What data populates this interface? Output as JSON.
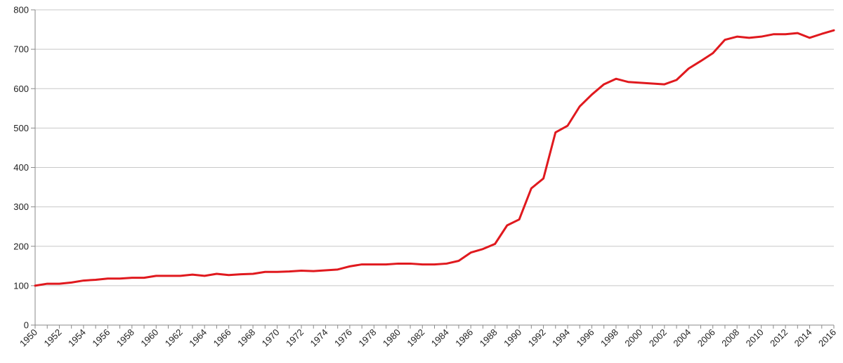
{
  "chart_data": {
    "type": "line",
    "title": "",
    "xlabel": "",
    "ylabel": "",
    "xlim": [
      1950,
      2016
    ],
    "ylim": [
      0,
      800
    ],
    "y_ticks": [
      0,
      100,
      200,
      300,
      400,
      500,
      600,
      700,
      800
    ],
    "x_tick_labels": [
      "1950",
      "1952",
      "1954",
      "1956",
      "1958",
      "1960",
      "1962",
      "1964",
      "1966",
      "1968",
      "1970",
      "1972",
      "1974",
      "1976",
      "1978",
      "1980",
      "1982",
      "1984",
      "1986",
      "1988",
      "1990",
      "1992",
      "1994",
      "1996",
      "1998",
      "2000",
      "2002",
      "2004",
      "2006",
      "2008",
      "2010",
      "2012",
      "2014",
      "2016"
    ],
    "grid": true,
    "legend": "none",
    "series": [
      {
        "color": "#e0191e",
        "x": [
          1950,
          1951,
          1952,
          1953,
          1954,
          1955,
          1956,
          1957,
          1958,
          1959,
          1960,
          1961,
          1962,
          1963,
          1964,
          1965,
          1966,
          1967,
          1968,
          1969,
          1970,
          1971,
          1972,
          1973,
          1974,
          1975,
          1976,
          1977,
          1978,
          1979,
          1980,
          1981,
          1982,
          1983,
          1984,
          1985,
          1986,
          1987,
          1988,
          1989,
          1990,
          1991,
          1992,
          1993,
          1994,
          1995,
          1996,
          1997,
          1998,
          1999,
          2000,
          2001,
          2002,
          2003,
          2004,
          2005,
          2006,
          2007,
          2008,
          2009,
          2010,
          2011,
          2012,
          2013,
          2014,
          2015,
          2016
        ],
        "values": [
          100,
          105,
          105,
          108,
          113,
          115,
          118,
          118,
          120,
          120,
          125,
          125,
          125,
          128,
          125,
          130,
          127,
          129,
          130,
          135,
          135,
          136,
          138,
          137,
          139,
          141,
          149,
          154,
          154,
          154,
          156,
          156,
          154,
          154,
          156,
          163,
          184,
          193,
          206,
          253,
          268,
          347,
          372,
          489,
          506,
          555,
          585,
          611,
          625,
          617,
          615,
          613,
          611,
          622,
          651,
          670,
          690,
          724,
          732,
          729,
          732,
          738,
          738,
          741,
          729,
          739,
          748
        ]
      }
    ]
  }
}
